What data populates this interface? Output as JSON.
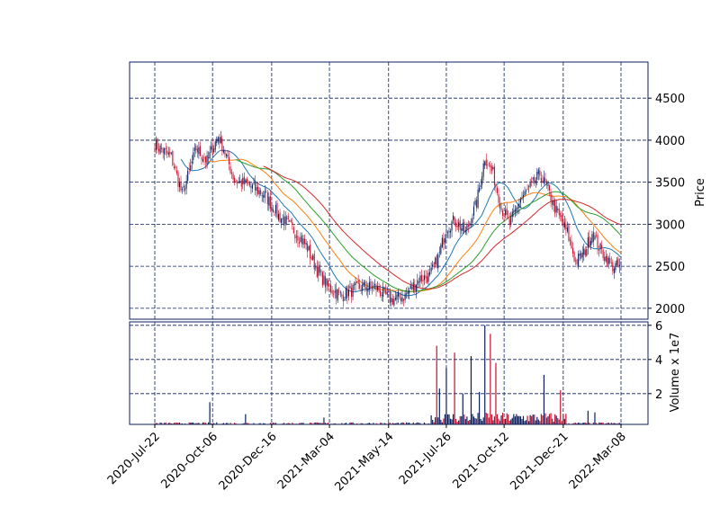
{
  "chart_data": {
    "type": "candlestick",
    "colors": {
      "up": "#0b1f5c",
      "down": "#c8102e",
      "frame": "#0b1f5c",
      "grid": "#0b1f5c",
      "ma_short": "#1f77b4",
      "ma_mid": "#ff7f0e",
      "ma_long": "#2ca02c",
      "ma_longest": "#d62728"
    },
    "x_tick_labels": [
      "2020-Jul-22",
      "2020-Oct-06",
      "2020-Dec-16",
      "2021-Mar-04",
      "2021-May-14",
      "2021-Jul-26",
      "2021-Oct-12",
      "2021-Dec-21",
      "2022-Mar-08"
    ],
    "price_panel": {
      "ylabel": "Price",
      "ylim": [
        1870,
        4930
      ],
      "y_ticks": [
        2000,
        2500,
        3000,
        3500,
        4000,
        4500
      ],
      "close_anchors": [
        {
          "i": 0,
          "v": 3950
        },
        {
          "i": 12,
          "v": 3800
        },
        {
          "i": 20,
          "v": 3350
        },
        {
          "i": 30,
          "v": 3900
        },
        {
          "i": 38,
          "v": 3750
        },
        {
          "i": 46,
          "v": 4050
        },
        {
          "i": 50,
          "v": 3900
        },
        {
          "i": 58,
          "v": 3520
        },
        {
          "i": 70,
          "v": 3450
        },
        {
          "i": 80,
          "v": 3350
        },
        {
          "i": 90,
          "v": 3100
        },
        {
          "i": 100,
          "v": 2950
        },
        {
          "i": 110,
          "v": 2750
        },
        {
          "i": 118,
          "v": 2450
        },
        {
          "i": 126,
          "v": 2250
        },
        {
          "i": 136,
          "v": 2150
        },
        {
          "i": 148,
          "v": 2250
        },
        {
          "i": 160,
          "v": 2250
        },
        {
          "i": 172,
          "v": 2100
        },
        {
          "i": 182,
          "v": 2150
        },
        {
          "i": 192,
          "v": 2350
        },
        {
          "i": 200,
          "v": 2380
        },
        {
          "i": 206,
          "v": 2600
        },
        {
          "i": 212,
          "v": 2950
        },
        {
          "i": 218,
          "v": 3050
        },
        {
          "i": 226,
          "v": 2900
        },
        {
          "i": 234,
          "v": 3250
        },
        {
          "i": 240,
          "v": 3800
        },
        {
          "i": 246,
          "v": 3600
        },
        {
          "i": 252,
          "v": 3200
        },
        {
          "i": 258,
          "v": 3000
        },
        {
          "i": 266,
          "v": 3300
        },
        {
          "i": 274,
          "v": 3450
        },
        {
          "i": 280,
          "v": 3600
        },
        {
          "i": 286,
          "v": 3400
        },
        {
          "i": 292,
          "v": 3150
        },
        {
          "i": 300,
          "v": 2900
        },
        {
          "i": 306,
          "v": 2550
        },
        {
          "i": 312,
          "v": 2650
        },
        {
          "i": 318,
          "v": 2900
        },
        {
          "i": 324,
          "v": 2700
        },
        {
          "i": 332,
          "v": 2500
        },
        {
          "i": 338,
          "v": 2500
        }
      ],
      "moving_average_windows": [
        20,
        40,
        60,
        80
      ]
    },
    "volume_panel": {
      "ylabel": "Volume x 1e7",
      "ylim": [
        0.2,
        6.2
      ],
      "y_ticks": [
        2,
        4,
        6
      ],
      "spikes": [
        {
          "i": 40,
          "v": 1.5
        },
        {
          "i": 66,
          "v": 0.8
        },
        {
          "i": 123,
          "v": 0.6
        },
        {
          "i": 205,
          "v": 4.8
        },
        {
          "i": 207,
          "v": 2.3
        },
        {
          "i": 212,
          "v": 3.5
        },
        {
          "i": 218,
          "v": 4.4
        },
        {
          "i": 224,
          "v": 2.0
        },
        {
          "i": 230,
          "v": 4.2
        },
        {
          "i": 236,
          "v": 2.1
        },
        {
          "i": 240,
          "v": 6.0
        },
        {
          "i": 244,
          "v": 5.5
        },
        {
          "i": 248,
          "v": 3.8
        },
        {
          "i": 283,
          "v": 3.1
        },
        {
          "i": 295,
          "v": 2.2
        },
        {
          "i": 315,
          "v": 1.0
        },
        {
          "i": 320,
          "v": 0.9
        }
      ]
    }
  }
}
